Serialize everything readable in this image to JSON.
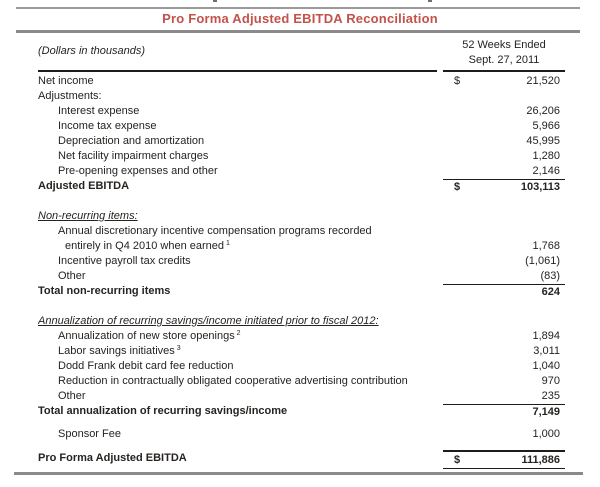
{
  "title": "Pro Forma Adjusted EBITDA Reconciliation",
  "colors": {
    "accent_red": "#C3524A",
    "rule_gray": "#8A8A8A",
    "table_rule_black": "#1C1C1C",
    "text": "#262320"
  },
  "header": {
    "left_label": "(Dollars in thousands)",
    "period_line1": "52 Weeks Ended",
    "period_line2": "Sept. 27, 2011"
  },
  "table": {
    "rows": [
      {
        "label": "Net income",
        "value": "21,520",
        "dollar": true,
        "indent": 0
      },
      {
        "label": "Adjustments:",
        "value": "",
        "indent": 0
      },
      {
        "label": "Interest expense",
        "value": "26,206",
        "indent": 1
      },
      {
        "label": "Income tax expense",
        "value": "5,966",
        "indent": 1
      },
      {
        "label": "Depreciation and amortization",
        "value": "45,995",
        "indent": 1
      },
      {
        "label": "Net facility impairment charges",
        "value": "1,280",
        "indent": 1
      },
      {
        "label": "Pre-opening expenses and other",
        "value": "2,146",
        "indent": 1
      },
      {
        "label": "Adjusted EBITDA",
        "value": "103,113",
        "dollar": true,
        "bold": true,
        "rule": "top"
      },
      {
        "type": "spacer",
        "size": "md"
      },
      {
        "label": "Non-recurring items:",
        "section": true,
        "value": ""
      },
      {
        "label": "Annual discretionary incentive compensation programs recorded",
        "indent": 1,
        "value": ""
      },
      {
        "label": "entirely in Q4 2010 when earned",
        "sup": "1",
        "indent": 2,
        "value": "1,768"
      },
      {
        "label": "Incentive payroll tax credits",
        "indent": 1,
        "value": "(1,061)"
      },
      {
        "label": "Other",
        "indent": 1,
        "value": "(83)"
      },
      {
        "label": "Total non-recurring items",
        "bold": true,
        "value": "624",
        "rule": "top"
      },
      {
        "type": "spacer",
        "size": "md"
      },
      {
        "label": "Annualization of recurring savings/income initiated prior to fiscal 2012:",
        "section": true,
        "value": ""
      },
      {
        "label": "Annualization of new store openings",
        "sup": "2",
        "indent": 1,
        "value": "1,894"
      },
      {
        "label": "Labor savings initiatives",
        "sup": "3",
        "indent": 1,
        "value": "3,011"
      },
      {
        "label": "Dodd Frank debit card fee reduction",
        "indent": 1,
        "value": "1,040"
      },
      {
        "label": "Reduction in contractually obligated cooperative advertising contribution",
        "indent": 1,
        "value": "970"
      },
      {
        "label": "Other",
        "indent": 1,
        "value": "235"
      },
      {
        "label": "Total annualization of recurring savings/income",
        "bold": true,
        "value": "7,149",
        "rule": "top"
      },
      {
        "type": "spacer",
        "size": "sm"
      },
      {
        "label": "Sponsor Fee",
        "indent": 1,
        "value": "1,000"
      },
      {
        "type": "spacer",
        "size": "sm"
      },
      {
        "label": "Pro Forma Adjusted EBITDA",
        "value": "111,886",
        "dollar": true,
        "bold": true,
        "grand": true
      }
    ]
  }
}
